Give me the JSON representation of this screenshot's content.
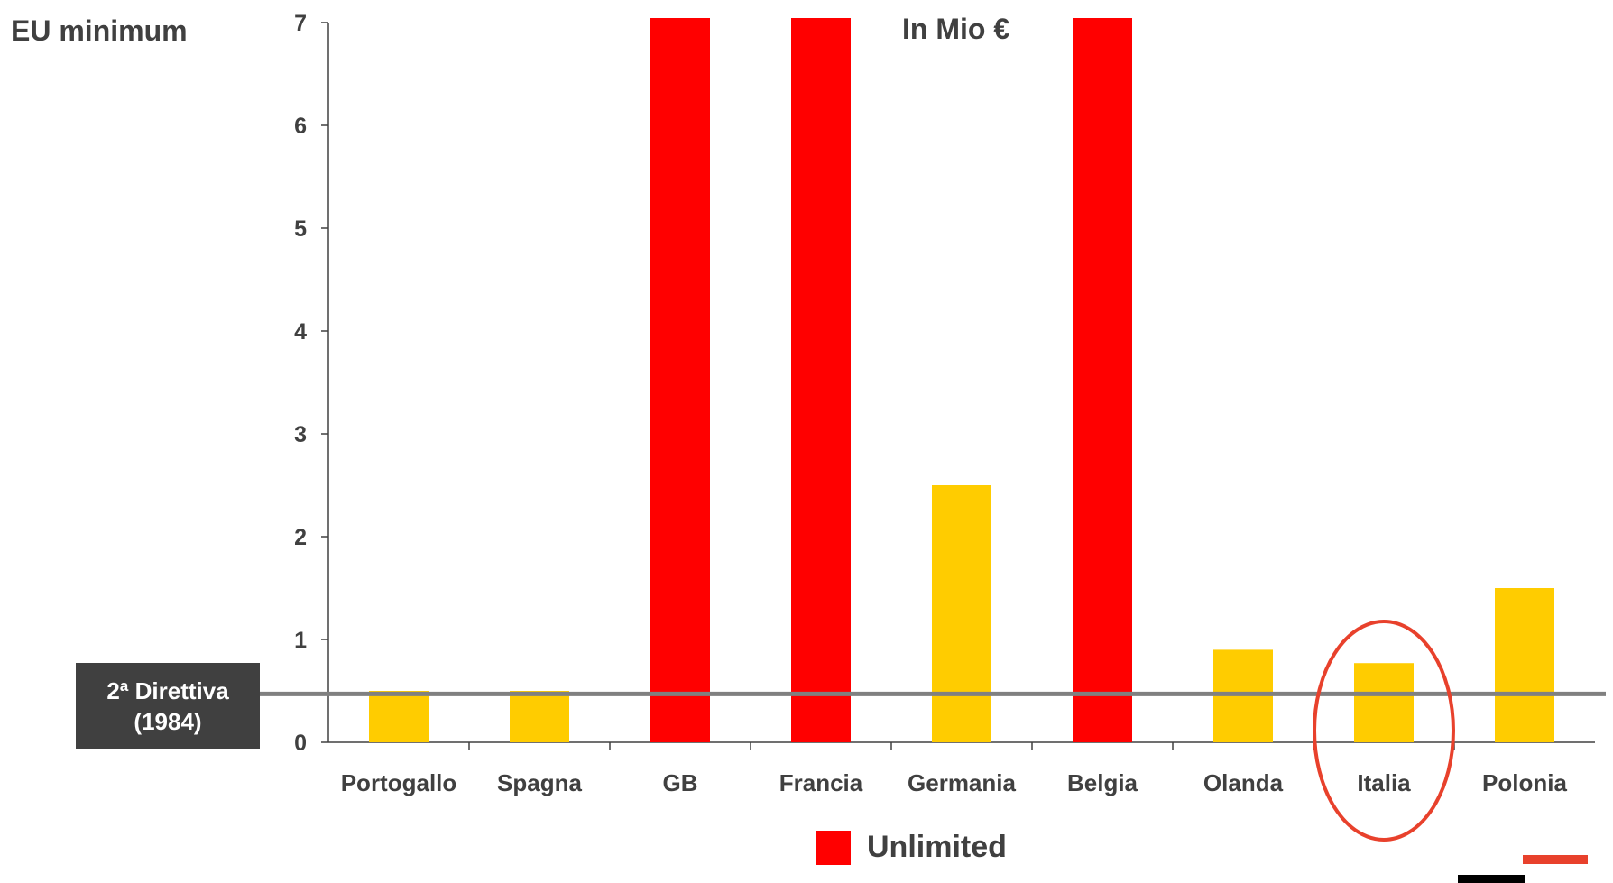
{
  "chart_data": {
    "type": "bar",
    "categories": [
      "Portogallo",
      "Spagna",
      "GB",
      "Francia",
      "Germania",
      "Belgia",
      "Olanda",
      "Italia",
      "Polonia"
    ],
    "values": [
      0.5,
      0.5,
      null,
      null,
      2.5,
      null,
      0.9,
      0.77,
      1.5
    ],
    "unlimited": [
      false,
      false,
      true,
      true,
      false,
      true,
      false,
      false,
      false
    ],
    "ylim": [
      0,
      7
    ],
    "yticks": [
      0,
      1,
      2,
      3,
      4,
      5,
      6,
      7
    ],
    "reference_line": {
      "value": 0.47,
      "label_line1": "2ª Direttiva",
      "label_line2": "(1984)"
    },
    "highlighted_category": "Italia",
    "left_label": "EU minimum",
    "unit_label": "In Mio €",
    "legend": [
      {
        "name": "Unlimited",
        "color": "#ff0000"
      }
    ],
    "grid": false,
    "colors": {
      "bar": "#ffcc00",
      "unlimited": "#ff0000",
      "reference_line": "#808080",
      "highlight_ellipse": "#e8412c",
      "text": "#404040"
    }
  }
}
